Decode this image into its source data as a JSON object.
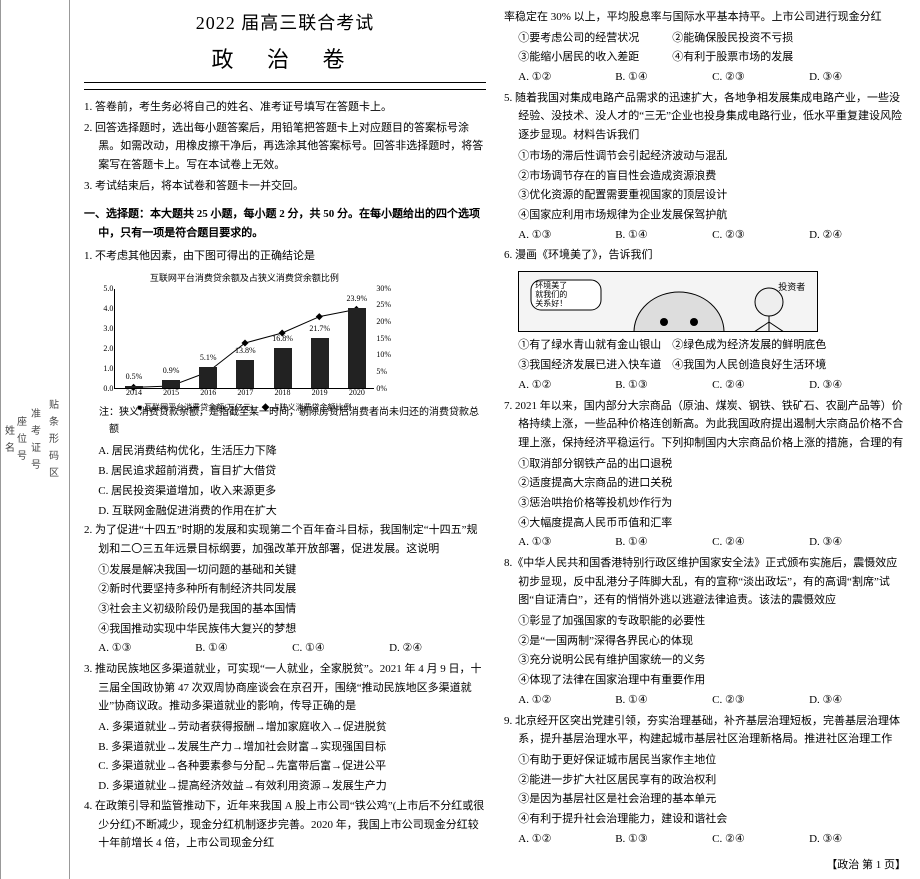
{
  "gutter": {
    "segs": [
      "贴条形码区",
      "准考证号",
      "座位号",
      "姓名"
    ]
  },
  "header": {
    "title1": "2022 届高三联合考试",
    "title2": "政 治 卷"
  },
  "instructions": [
    "1. 答卷前，考生务必将自己的姓名、准考证号填写在答题卡上。",
    "2. 回答选择题时，选出每小题答案后，用铅笔把答题卡上对应题目的答案标号涂黑。如需改动，用橡皮擦干净后，再选涂其他答案标号。回答非选择题时，将答案写在答题卡上。写在本试卷上无效。",
    "3. 考试结束后，将本试卷和答题卡一并交回。"
  ],
  "section1_head": "一、选择题：本大题共 25 小题，每小题 2 分，共 50 分。在每小题给出的四个选项中，只有一项是符合题目要求的。",
  "q1": {
    "stem": "1. 不考虑其他因素，由下图可得出的正确结论是",
    "chart": {
      "type": "bar+line",
      "title": "互联网平台消费贷余额及占狭义消费贷余额比例",
      "years": [
        "2014",
        "2015",
        "2016",
        "2017",
        "2018",
        "2019",
        "2020"
      ],
      "bar_values": [
        0.1,
        0.4,
        1.05,
        1.4,
        2.0,
        2.5,
        4.0
      ],
      "bar_labels": [
        "0.5%",
        "0.9%",
        "5.1%",
        "13.8%",
        "16.8%",
        "21.7%",
        "23.9%"
      ],
      "line_values_pct": [
        0.5,
        0.9,
        5.1,
        13.8,
        16.8,
        21.7,
        23.9
      ],
      "ylim_left": [
        0,
        5.0
      ],
      "ytick_left": [
        0,
        1.0,
        2.0,
        3.0,
        4.0,
        5.0
      ],
      "ylim_right": [
        0,
        30
      ],
      "ytick_right": [
        "0%",
        "5%",
        "10%",
        "15%",
        "20%",
        "25%",
        "30%"
      ],
      "bar_color": "#222222",
      "legend": "■ 互联网平台消费贷余额(万亿元)　◆ 占狭义消费贷余额比例",
      "background_color": "#ffffff"
    },
    "note": "注：狭义消费贷款余额，是指截至某一时间，剔除房贷后消费者尚未归还的消费贷款总额",
    "opts": [
      "A. 居民消费结构优化，生活压力下降",
      "B. 居民追求超前消费，盲目扩大借贷",
      "C. 居民投资渠道增加，收入来源更多",
      "D. 互联网金融促进消费的作用在扩大"
    ]
  },
  "q2": {
    "stem": "2. 为了促进“十四五”时期的发展和实现第二个百年奋斗目标，我国制定“十四五”规划和二〇三五年远景目标纲要，加强改革开放部署，促进发展。这说明",
    "subs": [
      "①发展是解决我国一切问题的基础和关键",
      "②新时代要坚持多种所有制经济共同发展",
      "③社会主义初级阶段仍是我国的基本国情",
      "④我国推动实现中华民族伟大复兴的梦想"
    ],
    "row": [
      "A. ①③",
      "B. ①④",
      "C. ①④",
      "D. ②④"
    ]
  },
  "q3": {
    "stem": "3. 推动民族地区多渠道就业，可实现“一人就业，全家脱贫”。2021 年 4 月 9 日，十三届全国政协第 47 次双周协商座谈会在京召开，围绕“推动民族地区多渠道就业”协商议政。推动多渠道就业的影响，传导正确的是",
    "opts": [
      "A. 多渠道就业→劳动者获得报酬→增加家庭收入→促进脱贫",
      "B. 多渠道就业→发展生产力→增加社会财富→实现强国目标",
      "C. 多渠道就业→各种要素参与分配→先富带后富→促进公平",
      "D. 多渠道就业→提高经济效益→有效利用资源→发展生产力"
    ]
  },
  "q4": {
    "stem": "4. 在政策引导和监管推动下，近年来我国 A 股上市公司“铁公鸡”(上市后不分红或很少分红)不断减少，现金分红机制逐步完善。2020 年，我国上市公司现金分红较十年前增长 4 倍，上市公司现金分红"
  },
  "q4b": {
    "cont": "率稳定在 30% 以上，平均股息率与国际水平基本持平。上市公司进行现金分红",
    "subs": [
      "①要考虑公司的经营状况　　　②能确保股民投资不亏损",
      "③能缩小居民的收入差距　　　④有利于股票市场的发展"
    ],
    "row": [
      "A. ①②",
      "B. ①④",
      "C. ②③",
      "D. ③④"
    ]
  },
  "q5": {
    "stem": "5. 随着我国对集成电路产品需求的迅速扩大，各地争相发展集成电路产业，一些没经验、没技术、没人才的“三无”企业也投身集成电路行业，低水平重复建设风险逐步显现。材料告诉我们",
    "subs": [
      "①市场的滞后性调节会引起经济波动与混乱",
      "②市场调节存在的盲目性会造成资源浪费",
      "③优化资源的配置需要重视国家的顶层设计",
      "④国家应利用市场规律为企业发展保驾护航"
    ],
    "row": [
      "A. ①③",
      "B. ①④",
      "C. ②③",
      "D. ②④"
    ]
  },
  "q6": {
    "stem": "6. 漫画《环境美了》，告诉我们",
    "cartoon": {
      "caption_left": "环境美了\n就我们的\n关系好！",
      "caption_right": "投资者"
    },
    "subs": [
      "①有了绿水青山就有金山银山　②绿色成为经济发展的鲜明底色",
      "③我国经济发展已进入快车道　④我国为人民创造良好生活环境"
    ],
    "row": [
      "A. ①②",
      "B. ①③",
      "C. ②④",
      "D. ③④"
    ]
  },
  "q7": {
    "stem": "7. 2021 年以来，国内部分大宗商品（原油、煤炭、钢铁、铁矿石、农副产品等）价格持续上涨，一些品种价格连创新高。为此我国政府提出遏制大宗商品价格不合理上涨，保持经济平稳运行。下列抑制国内大宗商品价格上涨的措施，合理的有",
    "subs": [
      "①取消部分钢铁产品的出口退税",
      "②适度提高大宗商品的进口关税",
      "③惩治哄抬价格等投机炒作行为",
      "④大幅度提高人民币币值和汇率"
    ],
    "row": [
      "A. ①③",
      "B. ①④",
      "C. ②④",
      "D. ③④"
    ]
  },
  "q8": {
    "stem": "8.《中华人民共和国香港特别行政区维护国家安全法》正式颁布实施后，震慑效应初步显现，反中乱港分子阵脚大乱，有的宣称“淡出政坛”，有的高调“割席”试图“自证清白”，还有的悄悄外逃以逃避法律追责。该法的震慑效应",
    "subs": [
      "①彰显了加强国家的专政职能的必要性",
      "②是“一国两制”深得各界民心的体现",
      "③充分说明公民有维护国家统一的义务",
      "④体现了法律在国家治理中有重要作用"
    ],
    "row": [
      "A. ①②",
      "B. ①④",
      "C. ②③",
      "D. ③④"
    ]
  },
  "q9": {
    "stem": "9. 北京经开区突出党建引领，夯实治理基础，补齐基层治理短板，完善基层治理体系，提升基层治理水平，构建起城市基层社区治理新格局。推进社区治理工作",
    "subs": [
      "①有助于更好保证城市居民当家作主地位",
      "②能进一步扩大社区居民享有的政治权利",
      "③是因为基层社区是社会治理的基本单元",
      "④有利于提升社会治理能力，建设和谐社会"
    ],
    "row": [
      "A. ①②",
      "B. ①③",
      "C. ②④",
      "D. ③④"
    ]
  },
  "footer": "【政治 第 1 页】"
}
